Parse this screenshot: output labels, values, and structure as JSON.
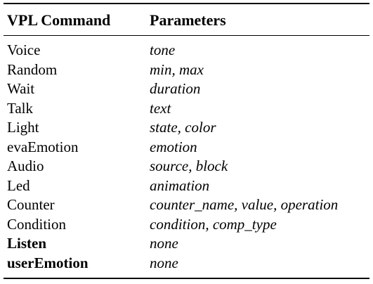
{
  "table": {
    "headers": [
      "VPL Command",
      "Parameters"
    ],
    "rows": [
      {
        "command": "Voice",
        "parameters": "tone",
        "bold": false
      },
      {
        "command": "Random",
        "parameters": "min, max",
        "bold": false
      },
      {
        "command": "Wait",
        "parameters": "duration",
        "bold": false
      },
      {
        "command": "Talk",
        "parameters": "text",
        "bold": false
      },
      {
        "command": "Light",
        "parameters": "state, color",
        "bold": false
      },
      {
        "command": "evaEmotion",
        "parameters": "emotion",
        "bold": false
      },
      {
        "command": "Audio",
        "parameters": "source, block",
        "bold": false
      },
      {
        "command": "Led",
        "parameters": "animation",
        "bold": false
      },
      {
        "command": "Counter",
        "parameters": "counter_name, value, operation",
        "bold": false
      },
      {
        "command": "Condition",
        "parameters": "condition, comp_type",
        "bold": false
      },
      {
        "command": "Listen",
        "parameters": "none",
        "bold": true
      },
      {
        "command": "userEmotion",
        "parameters": "none",
        "bold": true
      }
    ]
  }
}
